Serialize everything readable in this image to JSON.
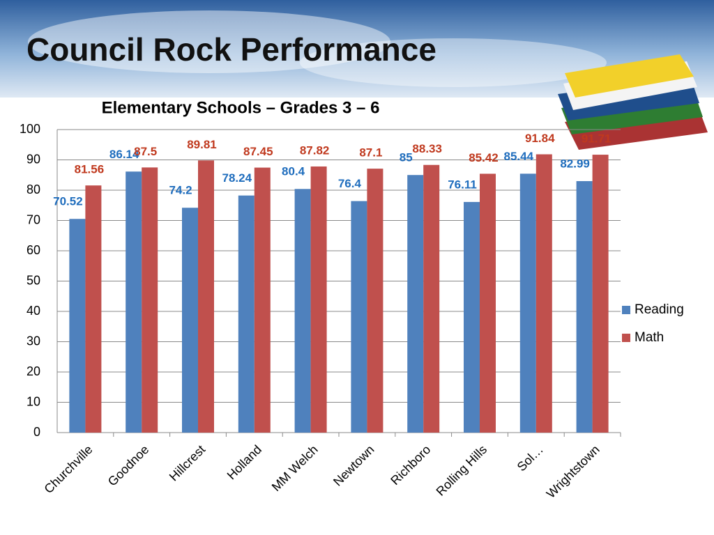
{
  "chart_data": {
    "type": "bar",
    "title": "Council Rock Performance",
    "subtitle": "Elementary Schools – Grades 3 – 6",
    "categories": [
      "Churchville",
      "Goodnoe",
      "Hillcrest",
      "Holland",
      "MM Welch",
      "Newtown",
      "Richboro",
      "Rolling Hills",
      "Sol…",
      "Wrightstown"
    ],
    "series": [
      {
        "name": "Reading",
        "color": "#4f81bd",
        "label_color": "#1f6dbd",
        "values": [
          70.52,
          86.14,
          74.2,
          78.24,
          80.4,
          76.4,
          85,
          76.11,
          85.44,
          82.99
        ]
      },
      {
        "name": "Math",
        "color": "#c0504d",
        "label_color": "#c0391e",
        "values": [
          81.56,
          87.5,
          89.81,
          87.45,
          87.82,
          87.1,
          88.33,
          85.42,
          91.84,
          91.71
        ]
      }
    ],
    "ylim": [
      0,
      100
    ],
    "yticks": [
      0,
      10,
      20,
      30,
      40,
      50,
      60,
      70,
      80,
      90,
      100
    ],
    "grid": true,
    "legend": "right"
  }
}
